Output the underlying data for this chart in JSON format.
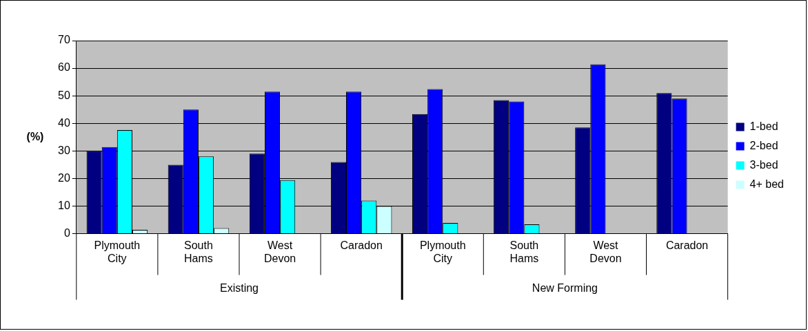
{
  "chart_data": {
    "type": "bar",
    "ylabel": "(%)",
    "categories": [
      "Plymouth City",
      "South Hams",
      "West Devon",
      "Caradon",
      "Plymouth City",
      "South Hams",
      "West Devon",
      "Caradon"
    ],
    "annotations": [
      "Existing",
      "New Forming"
    ],
    "series": [
      {
        "name": "1-bed",
        "color": "#000080",
        "values": [
          30,
          25,
          29,
          26,
          43.4,
          48.4,
          38.5,
          51
        ]
      },
      {
        "name": "2-bed",
        "color": "#0000ff",
        "values": [
          31.4,
          45,
          51.5,
          51.5,
          52.4,
          47.9,
          61.4,
          49
        ]
      },
      {
        "name": "3-bed",
        "color": "#00ffff",
        "values": [
          37.6,
          28,
          19.4,
          12,
          3.9,
          3.4,
          null,
          null
        ]
      },
      {
        "name": "4+ bed",
        "color": "#ccffff",
        "values": [
          1.4,
          2,
          null,
          10,
          null,
          null,
          null,
          null
        ]
      }
    ],
    "ylim": [
      0,
      70
    ],
    "yticks": [
      0,
      10,
      20,
      30,
      40,
      50,
      60,
      70
    ],
    "grid": "y",
    "legend": "right"
  }
}
